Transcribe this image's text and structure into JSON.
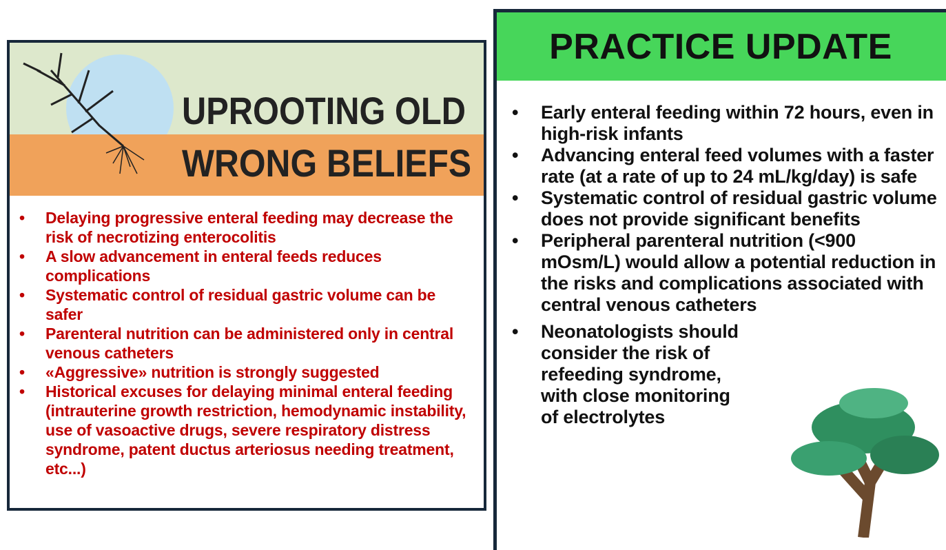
{
  "left_panel": {
    "title_lines": [
      "UPROOTING OLD",
      "WRONG BELIEFS"
    ],
    "bullets": [
      "Delaying progressive enteral feeding may decrease the risk of necrotizing enterocolitis",
      "A slow advancement in enteral feeds reduces complications",
      "Systematic control of residual gastric volume can be safer",
      "Parenteral nutrition can be administered only in central venous catheters",
      "«Aggressive» nutrition is strongly suggested",
      "Historical excuses for delaying minimal enteral feeding (intrauterine growth restriction, hemodynamic instability, use of vasoactive drugs, severe respiratory distress syndrome, patent ductus arteriosus needing treatment, etc...)"
    ]
  },
  "right_panel": {
    "title": "PRACTICE UPDATE",
    "bullets": [
      "Early enteral feeding within 72 hours, even in high-risk infants",
      "Advancing enteral feed volumes with a faster rate (at a rate of up to 24 mL/kg/day) is safe",
      "Systematic control of residual gastric volume does not provide significant benefits",
      "Peripheral parenteral nutrition (<900 mOsm/L) would allow a potential reduction in the risks and complications associated with central venous catheters",
      "Neonatologists should consider the risk of refeeding syndrome, with close monitoring of electrolytes"
    ]
  }
}
